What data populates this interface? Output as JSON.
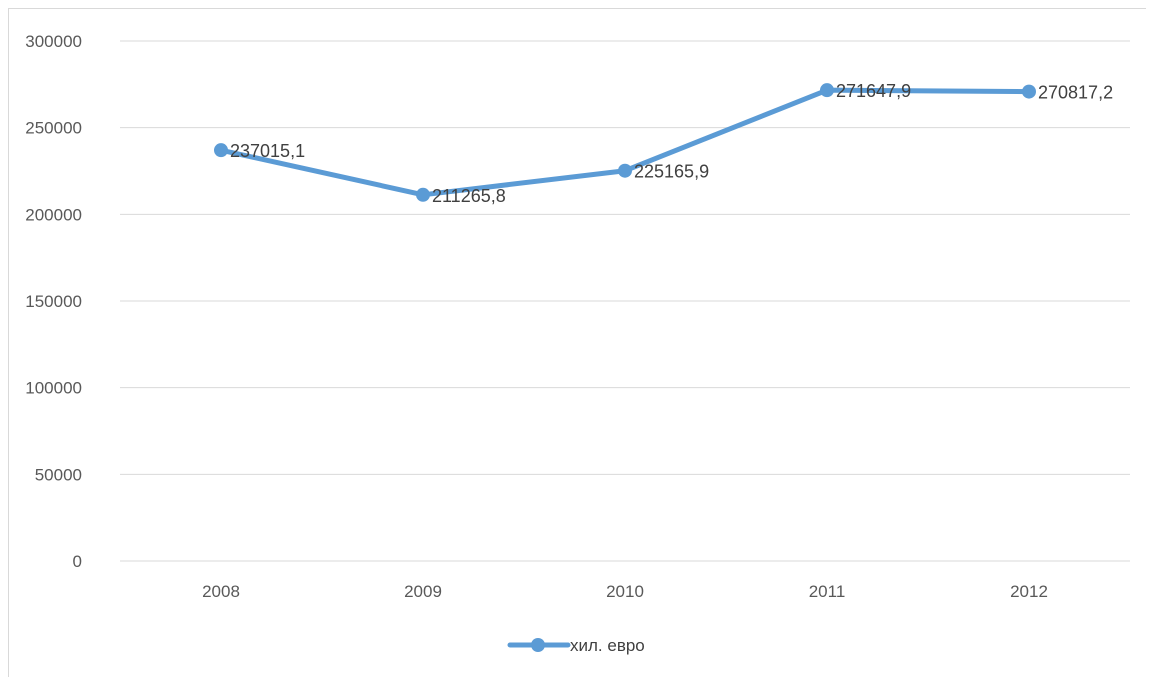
{
  "chart_data": {
    "type": "line",
    "categories": [
      "2008",
      "2009",
      "2010",
      "2011",
      "2012"
    ],
    "series": [
      {
        "name": "хил. евро",
        "values": [
          237015.1,
          211265.8,
          225165.9,
          271647.9,
          270817.2
        ],
        "labels": [
          "237015,1",
          "211265,8",
          "225165,9",
          "271647,9",
          "270817,2"
        ],
        "color": "#5b9bd5"
      }
    ],
    "y_ticks": [
      "0",
      "50000",
      "100000",
      "150000",
      "200000",
      "250000",
      "300000"
    ],
    "ylim": [
      0,
      300000
    ],
    "grid": true,
    "legend": "bottom",
    "gridline_color": "#d9d9d9"
  }
}
